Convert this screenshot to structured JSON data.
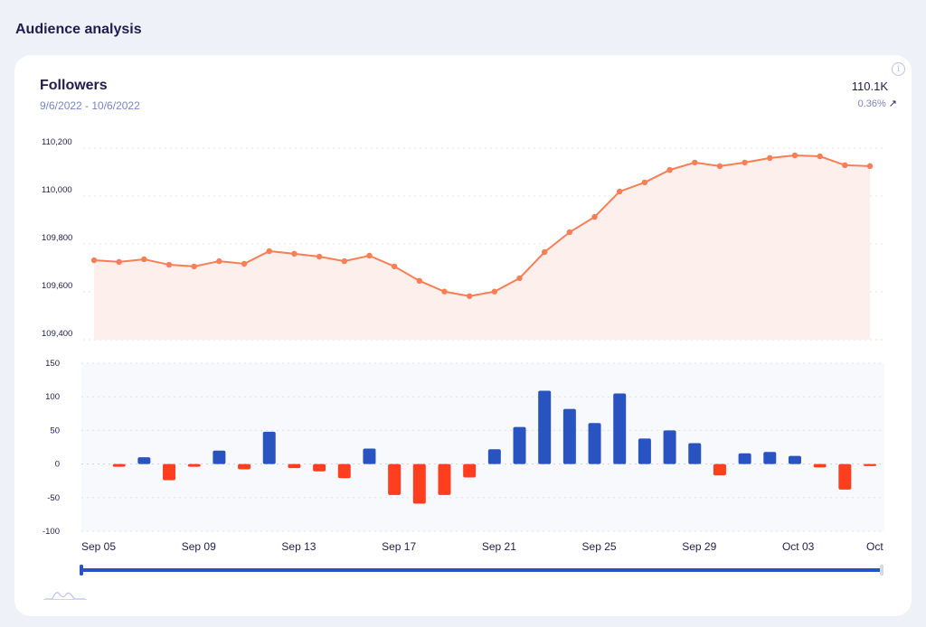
{
  "section": {
    "title": "Audience analysis"
  },
  "card": {
    "title": "Followers",
    "date_range": "9/6/2022 - 10/6/2022",
    "total": "110.1K",
    "change": "0.36%",
    "change_arrow": "↗",
    "info_icon": "i"
  },
  "colors": {
    "line": "#f77e55",
    "area": "#fdefec",
    "positive_bar": "#2853c0",
    "negative_bar": "#ff3d1f",
    "scrollbar": "#2853c0",
    "bar_bg": "#f8f9fc"
  },
  "chart_data": [
    {
      "type": "area",
      "title": "Followers",
      "xlabel": "",
      "ylabel": "",
      "ylim": [
        109400,
        110200
      ],
      "yticks": [
        "110,200",
        "110,000",
        "109,800",
        "109,600",
        "109,400"
      ],
      "grid": true,
      "x": [
        "Sep 05",
        "Sep 06",
        "Sep 07",
        "Sep 08",
        "Sep 09",
        "Sep 10",
        "Sep 11",
        "Sep 12",
        "Sep 13",
        "Sep 14",
        "Sep 15",
        "Sep 16",
        "Sep 17",
        "Sep 18",
        "Sep 19",
        "Sep 20",
        "Sep 21",
        "Sep 22",
        "Sep 23",
        "Sep 24",
        "Sep 25",
        "Sep 26",
        "Sep 27",
        "Sep 28",
        "Sep 29",
        "Sep 30",
        "Oct 01",
        "Oct 02",
        "Oct 03",
        "Oct 04",
        "Oct 05",
        "Oct 06"
      ],
      "values": [
        109732,
        109725,
        109736,
        109713,
        109706,
        109728,
        109717,
        109770,
        109759,
        109747,
        109728,
        109751,
        109706,
        109646,
        109601,
        109582,
        109601,
        109657,
        109766,
        109849,
        109913,
        110019,
        110057,
        110109,
        110140,
        110125,
        110140,
        110159,
        110170,
        110166,
        110129,
        110125
      ]
    },
    {
      "type": "bar",
      "title": "Daily follower change",
      "ylim": [
        -100,
        150
      ],
      "yticks": [
        "150",
        "100",
        "50",
        "0",
        "-50",
        "-100"
      ],
      "grid": true,
      "x": [
        "Sep 05",
        "Sep 06",
        "Sep 07",
        "Sep 08",
        "Sep 09",
        "Sep 10",
        "Sep 11",
        "Sep 12",
        "Sep 13",
        "Sep 14",
        "Sep 15",
        "Sep 16",
        "Sep 17",
        "Sep 18",
        "Sep 19",
        "Sep 20",
        "Sep 21",
        "Sep 22",
        "Sep 23",
        "Sep 24",
        "Sep 25",
        "Sep 26",
        "Sep 27",
        "Sep 28",
        "Sep 29",
        "Sep 30",
        "Oct 01",
        "Oct 02",
        "Oct 03",
        "Oct 04",
        "Oct 05",
        "Oct 06"
      ],
      "values": [
        0,
        -4,
        10,
        -24,
        -4,
        20,
        -8,
        48,
        -6,
        -11,
        -21,
        23,
        -46,
        -59,
        -46,
        -20,
        22,
        55,
        109,
        82,
        61,
        105,
        38,
        50,
        31,
        -17,
        16,
        18,
        12,
        -5,
        -38,
        -3
      ],
      "xtick_labels": [
        "Sep 05",
        "Sep 09",
        "Sep 13",
        "Sep 17",
        "Sep 21",
        "Sep 25",
        "Sep 29",
        "Oct 03",
        "Oct"
      ]
    }
  ]
}
